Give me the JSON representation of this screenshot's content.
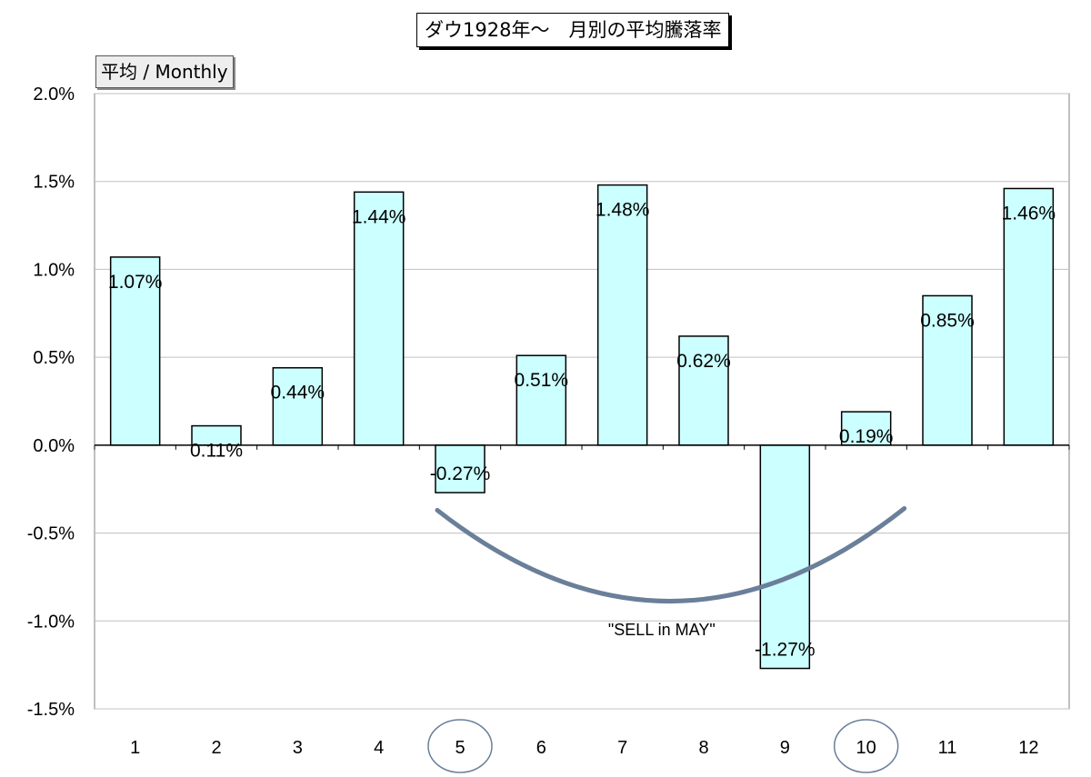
{
  "chart_data": {
    "type": "bar",
    "title": "ダウ1928年～　月別の平均騰落率",
    "ylabel": "平均 / Monthly",
    "xlabel": "",
    "categories": [
      "1",
      "2",
      "3",
      "4",
      "5",
      "6",
      "7",
      "8",
      "9",
      "10",
      "11",
      "12"
    ],
    "values": [
      1.07,
      0.11,
      0.44,
      1.44,
      -0.27,
      0.51,
      1.48,
      0.62,
      -1.27,
      0.19,
      0.85,
      1.46
    ],
    "value_labels": [
      "1.07%",
      "0.11%",
      "0.44%",
      "1.44%",
      "-0.27%",
      "0.51%",
      "1.48%",
      "0.62%",
      "-1.27%",
      "0.19%",
      "0.85%",
      "1.46%"
    ],
    "ylim": [
      -1.5,
      2.0
    ],
    "yticks": [
      2.0,
      1.5,
      1.0,
      0.5,
      0.0,
      -0.5,
      -1.0,
      -1.5
    ],
    "ytick_labels": [
      "2.0%",
      "1.5%",
      "1.0%",
      "0.5%",
      "0.0%",
      "-0.5%",
      "-1.0%",
      "-1.5%"
    ],
    "grid": true,
    "bar_color": "#ccffff",
    "bar_edge_color": "#000000",
    "highlighted_categories": [
      "5",
      "10"
    ],
    "annotation": {
      "text": "\"SELL in MAY\"",
      "arc_from_category": "5",
      "arc_to_category": "10",
      "arc_color": "#6a7f99"
    }
  }
}
